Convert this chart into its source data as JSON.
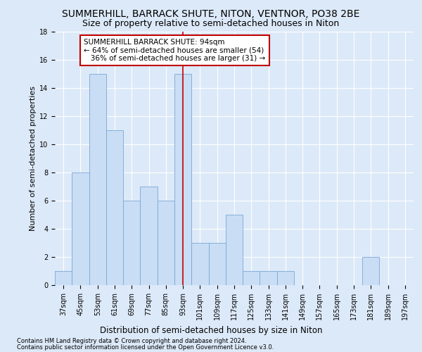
{
  "title": "SUMMERHILL, BARRACK SHUTE, NITON, VENTNOR, PO38 2BE",
  "subtitle": "Size of property relative to semi-detached houses in Niton",
  "xlabel_bottom": "Distribution of semi-detached houses by size in Niton",
  "ylabel": "Number of semi-detached properties",
  "categories": [
    "37sqm",
    "45sqm",
    "53sqm",
    "61sqm",
    "69sqm",
    "77sqm",
    "85sqm",
    "93sqm",
    "101sqm",
    "109sqm",
    "117sqm",
    "125sqm",
    "133sqm",
    "141sqm",
    "149sqm",
    "157sqm",
    "165sqm",
    "173sqm",
    "181sqm",
    "189sqm",
    "197sqm"
  ],
  "values": [
    1,
    8,
    15,
    11,
    6,
    7,
    6,
    15,
    3,
    3,
    5,
    1,
    1,
    1,
    0,
    0,
    0,
    0,
    2,
    0,
    0
  ],
  "bar_color": "#c9ddf5",
  "bar_edge_color": "#7ba7d4",
  "highlight_index": 7,
  "highlight_line_color": "#c00000",
  "annotation_line1": "SUMMERHILL BARRACK SHUTE: 94sqm",
  "annotation_line2": "← 64% of semi-detached houses are smaller (54)",
  "annotation_line3": "   36% of semi-detached houses are larger (31) →",
  "annotation_box_color": "#ffffff",
  "annotation_box_edge_color": "#c00000",
  "footnote1": "Contains HM Land Registry data © Crown copyright and database right 2024.",
  "footnote2": "Contains public sector information licensed under the Open Government Licence v3.0.",
  "background_color": "#dce9f8",
  "plot_bg_color": "#dce9f8",
  "grid_color": "#ffffff",
  "ylim": [
    0,
    18
  ],
  "yticks": [
    0,
    2,
    4,
    6,
    8,
    10,
    12,
    14,
    16,
    18
  ],
  "title_fontsize": 10,
  "subtitle_fontsize": 9,
  "ylabel_fontsize": 8,
  "tick_fontsize": 7,
  "annotation_fontsize": 7.5,
  "footnote_fontsize": 6
}
